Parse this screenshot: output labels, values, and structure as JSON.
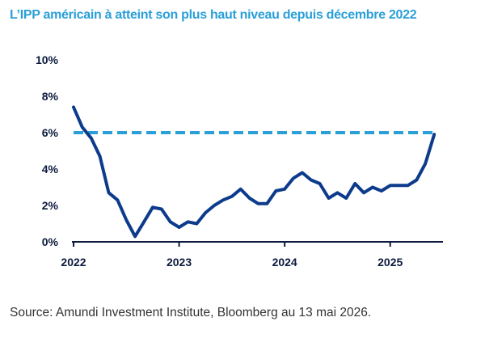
{
  "title": "L’IPP américain à atteint son plus haut niveau depuis décembre 2022",
  "source": "Source: Amundi Investment Institute, Bloomberg au 13 mai 2026.",
  "colors": {
    "title": "#2a9fd8",
    "line": "#0d3b8c",
    "reference": "#2a9fd8",
    "axis": "#0d1b3e"
  },
  "chart_data": {
    "type": "line",
    "title": "L’IPP américain à atteint son plus haut niveau depuis décembre 2022",
    "xlabel": "",
    "ylabel": "",
    "xlim": [
      2022,
      2025.5
    ],
    "ylim": [
      0,
      10
    ],
    "y_ticks": [
      0,
      2,
      4,
      6,
      8,
      10
    ],
    "y_tick_labels": [
      "0%",
      "2%",
      "4%",
      "6%",
      "8%",
      "10%"
    ],
    "x_ticks": [
      2022,
      2023,
      2024,
      2025
    ],
    "x_tick_labels": [
      "2022",
      "2023",
      "2024",
      "2025"
    ],
    "grid": false,
    "reference_line": {
      "y": 6,
      "style": "dashed"
    },
    "series": [
      {
        "x": [
          2022.0,
          2022.083,
          2022.167,
          2022.25,
          2022.333,
          2022.417,
          2022.5,
          2022.583,
          2022.667,
          2022.75,
          2022.833,
          2022.917,
          2023.0,
          2023.083,
          2023.167,
          2023.25,
          2023.333,
          2023.417,
          2023.5,
          2023.583,
          2023.667,
          2023.75,
          2023.833,
          2023.917,
          2024.0,
          2024.083,
          2024.167,
          2024.25,
          2024.333,
          2024.417,
          2024.5,
          2024.583,
          2024.667,
          2024.75,
          2024.833,
          2024.917,
          2025.0,
          2025.083,
          2025.167,
          2025.25,
          2025.333,
          2025.417
        ],
        "values": [
          7.4,
          6.3,
          5.7,
          4.7,
          2.7,
          2.3,
          1.2,
          0.3,
          1.1,
          1.9,
          1.8,
          1.1,
          0.8,
          1.1,
          1.0,
          1.6,
          2.0,
          2.3,
          2.5,
          2.9,
          2.4,
          2.1,
          2.1,
          2.8,
          2.9,
          3.5,
          3.8,
          3.4,
          3.2,
          2.4,
          2.7,
          2.4,
          3.2,
          2.7,
          3.0,
          2.8,
          3.1,
          3.1,
          3.1,
          3.4,
          4.3,
          5.9
        ]
      }
    ]
  }
}
